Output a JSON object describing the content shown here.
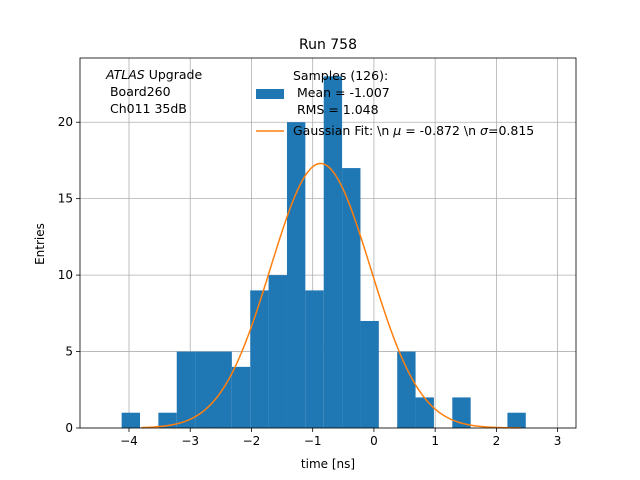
{
  "chart_data": {
    "type": "bar",
    "title": "Run 758",
    "xlabel": "time [ns]",
    "ylabel": "Entries",
    "xlim": [
      -4.8,
      3.3
    ],
    "ylim": [
      0,
      24.2
    ],
    "grid": true,
    "x_ticks": [
      -4,
      -3,
      -2,
      -1,
      0,
      1,
      2,
      3
    ],
    "y_ticks": [
      0,
      5,
      10,
      15,
      20
    ],
    "bar_color": "#1f77b4",
    "fit_color": "#ff7f0e",
    "bins": [
      {
        "left": -4.12,
        "right": -3.82,
        "count": 1
      },
      {
        "left": -3.82,
        "right": -3.52,
        "count": 0
      },
      {
        "left": -3.52,
        "right": -3.22,
        "count": 1
      },
      {
        "left": -3.22,
        "right": -2.92,
        "count": 5
      },
      {
        "left": -2.92,
        "right": -2.62,
        "count": 5
      },
      {
        "left": -2.62,
        "right": -2.32,
        "count": 5
      },
      {
        "left": -2.32,
        "right": -2.02,
        "count": 4
      },
      {
        "left": -2.02,
        "right": -1.72,
        "count": 9
      },
      {
        "left": -1.72,
        "right": -1.42,
        "count": 10
      },
      {
        "left": -1.42,
        "right": -1.12,
        "count": 20
      },
      {
        "left": -1.12,
        "right": -0.82,
        "count": 9
      },
      {
        "left": -0.82,
        "right": -0.52,
        "count": 23
      },
      {
        "left": -0.52,
        "right": -0.22,
        "count": 17
      },
      {
        "left": -0.22,
        "right": 0.08,
        "count": 7
      },
      {
        "left": 0.08,
        "right": 0.38,
        "count": 0
      },
      {
        "left": 0.38,
        "right": 0.68,
        "count": 5
      },
      {
        "left": 0.68,
        "right": 0.98,
        "count": 2
      },
      {
        "left": 0.98,
        "right": 1.28,
        "count": 0
      },
      {
        "left": 1.28,
        "right": 1.58,
        "count": 2
      },
      {
        "left": 1.58,
        "right": 1.88,
        "count": 0
      },
      {
        "left": 1.88,
        "right": 2.18,
        "count": 0
      },
      {
        "left": 2.18,
        "right": 2.48,
        "count": 1
      }
    ],
    "fit": {
      "mu": -0.872,
      "sigma": 0.815,
      "amplitude": 17.3,
      "x_range": [
        -3.8,
        2.4
      ]
    },
    "legend": {
      "placement": "top-right",
      "samples_line1": "Samples (126):",
      "samples_line2": " Mean = -1.007",
      "samples_line3": " RMS = 1.048",
      "fit_label_prefix": "Gaussian Fit: \\n ",
      "fit_mu_symbol": "μ",
      "fit_mu_value": " = -0.872 \\n ",
      "fit_sigma_symbol": "σ",
      "fit_sigma_value": "=0.815"
    },
    "annotation": {
      "experiment": "ATLAS",
      "experiment_suffix": " Upgrade",
      "line2": " Board260",
      "line3": " Ch011 35dB"
    }
  }
}
